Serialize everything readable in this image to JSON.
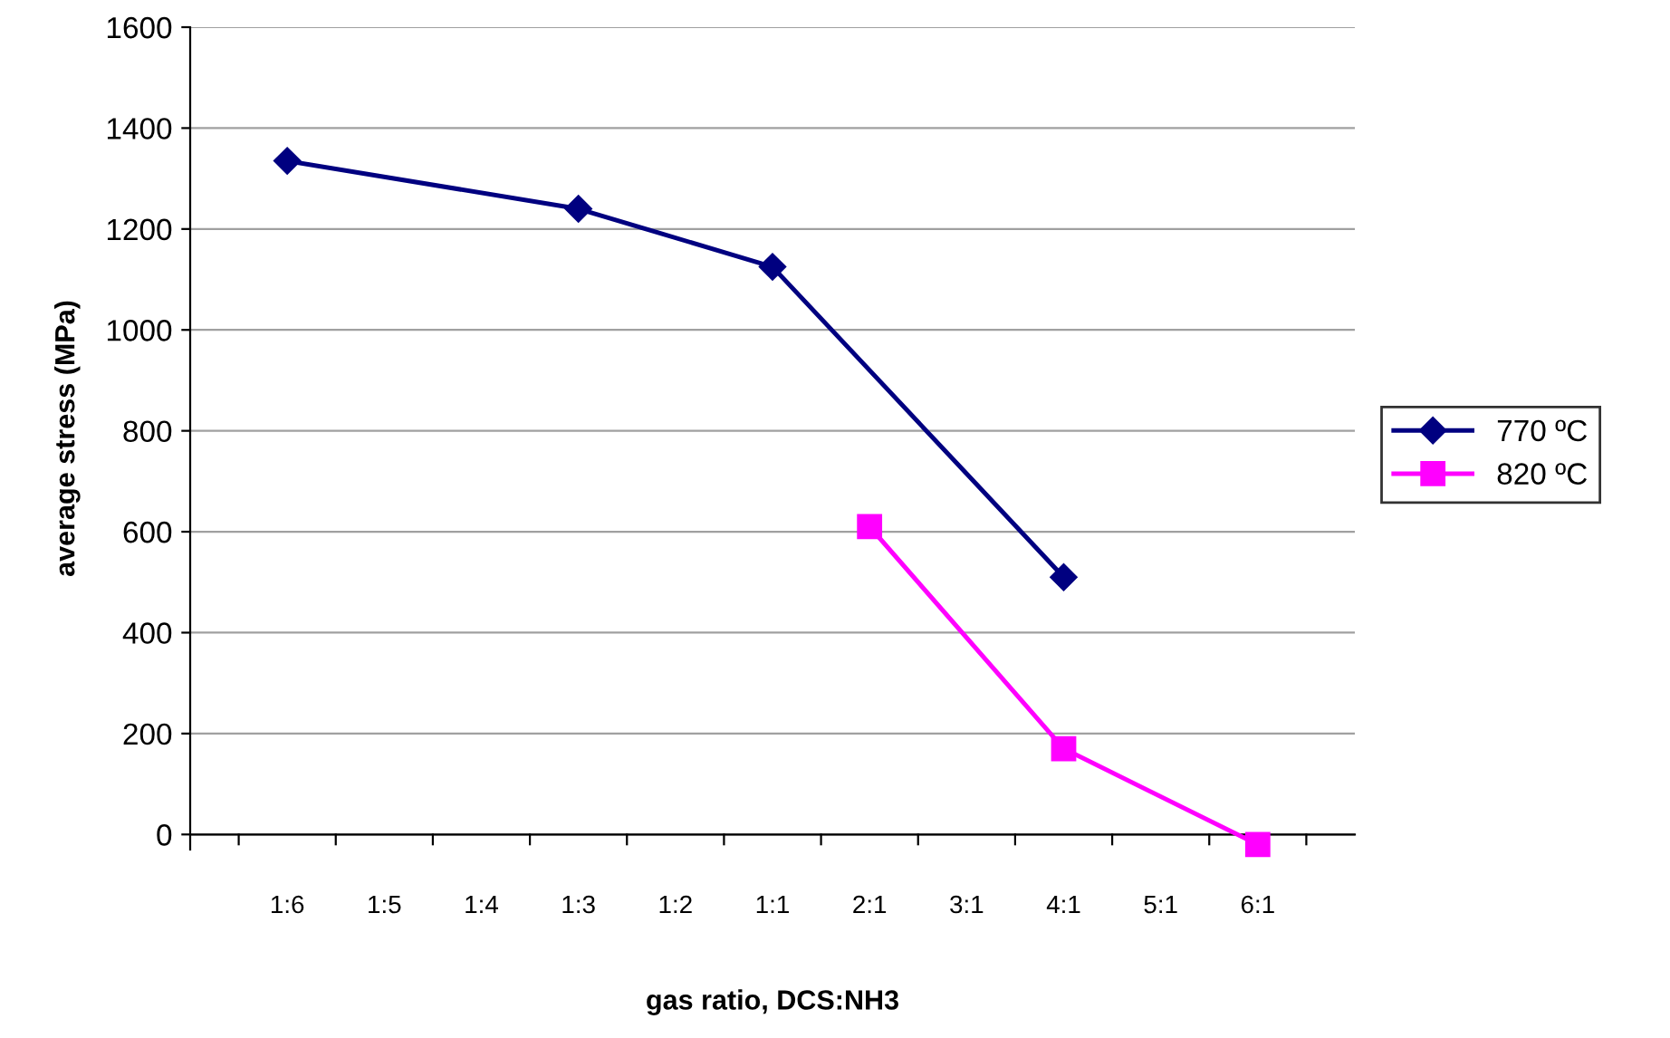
{
  "chart_data": {
    "type": "line",
    "xlabel": "gas ratio, DCS:NH3",
    "ylabel": "average stress (MPa)",
    "categories": [
      "1:6",
      "1:5",
      "1:4",
      "1:3",
      "1:2",
      "1:1",
      "2:1",
      "3:1",
      "4:1",
      "5:1",
      "6:1"
    ],
    "series": [
      {
        "name": "770 ºC",
        "color": "#000080",
        "marker": "diamond",
        "values": [
          1335,
          null,
          null,
          1240,
          null,
          1125,
          null,
          null,
          510,
          null,
          null
        ]
      },
      {
        "name": "820 ºC",
        "color": "#ff00ff",
        "marker": "square",
        "values": [
          null,
          null,
          null,
          null,
          null,
          null,
          610,
          null,
          170,
          null,
          -20
        ]
      }
    ],
    "ylim": [
      -30,
      1600
    ],
    "yticks": [
      0,
      200,
      400,
      600,
      800,
      1000,
      1200,
      1400,
      1600
    ],
    "grid": "y",
    "legend": "right",
    "line_style": "solid"
  }
}
